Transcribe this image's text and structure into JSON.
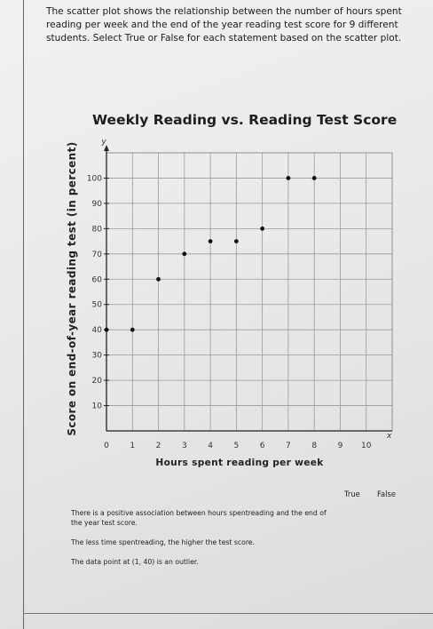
{
  "instructions": "The scatter plot shows the relationship between the number of hours spent reading per week and the end of the year reading test score for 9 different students. Select True or False for each statement based on the scatter plot.",
  "chart_data": {
    "type": "scatter",
    "title": "Weekly Reading vs. Reading Test Score",
    "xlabel": "Hours spent reading per week",
    "ylabel": "Score on end-of-year reading test (in percent)",
    "x_axis_name": "x",
    "y_axis_name": "y",
    "xlim": [
      0,
      11
    ],
    "ylim": [
      0,
      110
    ],
    "x_ticks": [
      0,
      1,
      2,
      3,
      4,
      5,
      6,
      7,
      8,
      9,
      10
    ],
    "y_ticks": [
      10,
      20,
      30,
      40,
      50,
      60,
      70,
      80,
      90,
      100
    ],
    "grid": true,
    "points": [
      {
        "x": 0,
        "y": 40
      },
      {
        "x": 1,
        "y": 40
      },
      {
        "x": 2,
        "y": 60
      },
      {
        "x": 3,
        "y": 70
      },
      {
        "x": 4,
        "y": 75
      },
      {
        "x": 5,
        "y": 75
      },
      {
        "x": 6,
        "y": 80
      },
      {
        "x": 7,
        "y": 100
      },
      {
        "x": 8,
        "y": 100
      }
    ]
  },
  "answer_table": {
    "true_label": "True",
    "false_label": "False",
    "statements": [
      "There is a positive association between hours spentreading and the end of the year test score.",
      "The less time spentreading, the higher the test score.",
      "The data point at (1, 40) is an outlier."
    ]
  }
}
